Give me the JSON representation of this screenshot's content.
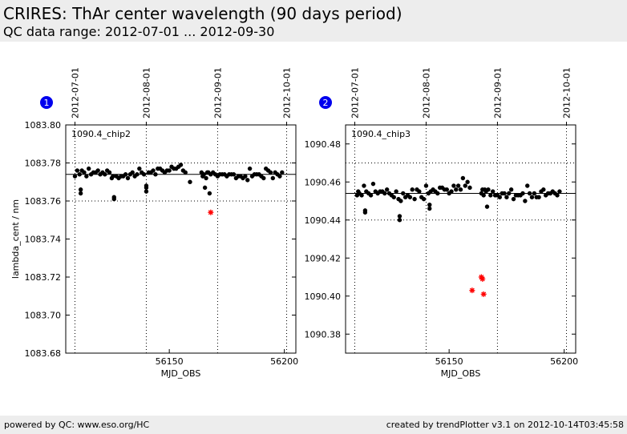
{
  "header": {
    "title": "CRIRES: ThAr center wavelength (90 days period)",
    "subtitle": "QC data range: 2012-07-01 ... 2012-09-30"
  },
  "footer": {
    "left": "powered by QC: www.eso.org/HC",
    "right": "created by trendPlotter v3.1 on 2012-10-14T03:45:58"
  },
  "colors": {
    "outlier": "#ff0000",
    "data": "#000000",
    "badge": "#0000ee"
  },
  "chart_data": [
    {
      "type": "scatter",
      "badge": "1",
      "label": "1090.4_chip2",
      "xlabel": "MJD_OBS",
      "ylabel": "lambda_cent / nm",
      "xlim": [
        56105,
        56205
      ],
      "ylim": [
        1083.68,
        1083.8
      ],
      "xticks": [
        56150,
        56200
      ],
      "yticks": [
        1083.68,
        1083.7,
        1083.72,
        1083.74,
        1083.76,
        1083.78,
        1083.8
      ],
      "date_ticks": [
        {
          "x": 56109,
          "label": "2012-07-01"
        },
        {
          "x": 56140,
          "label": "2012-08-01"
        },
        {
          "x": 56171,
          "label": "2012-09-01"
        },
        {
          "x": 56201,
          "label": "2012-10-01"
        }
      ],
      "reference_line": 1083.774,
      "dotted_lines": [
        1083.78,
        1083.76
      ],
      "grid": "vertical dotted at date ticks",
      "points": [
        [
          56109,
          1083.773
        ],
        [
          56110,
          1083.776
        ],
        [
          56111,
          1083.774
        ],
        [
          56111.5,
          1083.766
        ],
        [
          56111.5,
          1083.764
        ],
        [
          56112,
          1083.776
        ],
        [
          56113,
          1083.775
        ],
        [
          56114,
          1083.773
        ],
        [
          56115,
          1083.777
        ],
        [
          56116,
          1083.774
        ],
        [
          56117,
          1083.775
        ],
        [
          56118,
          1083.775
        ],
        [
          56119,
          1083.776
        ],
        [
          56120,
          1083.774
        ],
        [
          56121,
          1083.775
        ],
        [
          56122,
          1083.774
        ],
        [
          56123,
          1083.776
        ],
        [
          56124,
          1083.775
        ],
        [
          56125,
          1083.772
        ],
        [
          56125.5,
          1083.773
        ],
        [
          56126,
          1083.762
        ],
        [
          56126,
          1083.761
        ],
        [
          56127,
          1083.773
        ],
        [
          56128,
          1083.772
        ],
        [
          56129,
          1083.773
        ],
        [
          56130,
          1083.773
        ],
        [
          56131,
          1083.774
        ],
        [
          56132,
          1083.772
        ],
        [
          56133,
          1083.774
        ],
        [
          56134,
          1083.775
        ],
        [
          56135,
          1083.773
        ],
        [
          56136,
          1083.774
        ],
        [
          56137,
          1083.777
        ],
        [
          56138,
          1083.775
        ],
        [
          56139,
          1083.774
        ],
        [
          56140,
          1083.768
        ],
        [
          56140,
          1083.767
        ],
        [
          56140,
          1083.765
        ],
        [
          56141,
          1083.775
        ],
        [
          56142,
          1083.775
        ],
        [
          56143,
          1083.776
        ],
        [
          56144,
          1083.774
        ],
        [
          56145,
          1083.777
        ],
        [
          56146,
          1083.777
        ],
        [
          56147,
          1083.776
        ],
        [
          56148,
          1083.775
        ],
        [
          56149,
          1083.776
        ],
        [
          56150,
          1083.776
        ],
        [
          56151,
          1083.778
        ],
        [
          56152,
          1083.777
        ],
        [
          56153,
          1083.777
        ],
        [
          56154,
          1083.778
        ],
        [
          56155,
          1083.779
        ],
        [
          56156,
          1083.776
        ],
        [
          56157,
          1083.775
        ],
        [
          56159,
          1083.77
        ],
        [
          56164,
          1083.775
        ],
        [
          56164.5,
          1083.773
        ],
        [
          56165,
          1083.774
        ],
        [
          56165.5,
          1083.767
        ],
        [
          56166,
          1083.772
        ],
        [
          56166.5,
          1083.775
        ],
        [
          56167,
          1083.775
        ],
        [
          56167.5,
          1083.764
        ],
        [
          56168,
          1083.774
        ],
        [
          56169,
          1083.775
        ],
        [
          56170,
          1083.774
        ],
        [
          56171,
          1083.773
        ],
        [
          56172,
          1083.774
        ],
        [
          56173,
          1083.774
        ],
        [
          56174,
          1083.774
        ],
        [
          56175,
          1083.773
        ],
        [
          56176,
          1083.774
        ],
        [
          56177,
          1083.774
        ],
        [
          56178,
          1083.774
        ],
        [
          56179,
          1083.772
        ],
        [
          56180,
          1083.773
        ],
        [
          56181,
          1083.773
        ],
        [
          56182,
          1083.772
        ],
        [
          56183,
          1083.773
        ],
        [
          56184,
          1083.771
        ],
        [
          56185,
          1083.777
        ],
        [
          56186,
          1083.773
        ],
        [
          56187,
          1083.774
        ],
        [
          56188,
          1083.774
        ],
        [
          56189,
          1083.774
        ],
        [
          56190,
          1083.773
        ],
        [
          56191,
          1083.772
        ],
        [
          56192,
          1083.777
        ],
        [
          56193,
          1083.776
        ],
        [
          56194,
          1083.775
        ],
        [
          56195,
          1083.772
        ],
        [
          56196,
          1083.775
        ],
        [
          56197,
          1083.774
        ],
        [
          56198,
          1083.773
        ],
        [
          56199,
          1083.775
        ]
      ],
      "outliers": [
        [
          56168,
          1083.754
        ]
      ]
    },
    {
      "type": "scatter",
      "badge": "2",
      "label": "1090.4_chip3",
      "xlabel": "MJD_OBS",
      "ylabel": "",
      "xlim": [
        56105,
        56205
      ],
      "ylim": [
        1090.37,
        1090.49
      ],
      "xticks": [
        56150,
        56200
      ],
      "yticks": [
        1090.38,
        1090.4,
        1090.42,
        1090.44,
        1090.46,
        1090.48
      ],
      "date_ticks": [
        {
          "x": 56109,
          "label": "2012-07-01"
        },
        {
          "x": 56140,
          "label": "2012-08-01"
        },
        {
          "x": 56171,
          "label": "2012-09-01"
        },
        {
          "x": 56201,
          "label": "2012-10-01"
        }
      ],
      "reference_line": 1090.454,
      "dotted_lines": [
        1090.47,
        1090.44
      ],
      "grid": "vertical dotted at date ticks",
      "points": [
        [
          56110,
          1090.453
        ],
        [
          56110.5,
          1090.455
        ],
        [
          56111,
          1090.454
        ],
        [
          56112,
          1090.453
        ],
        [
          56113,
          1090.458
        ],
        [
          56113.5,
          1090.445
        ],
        [
          56113.5,
          1090.444
        ],
        [
          56114,
          1090.455
        ],
        [
          56115,
          1090.454
        ],
        [
          56116,
          1090.453
        ],
        [
          56117,
          1090.459
        ],
        [
          56118,
          1090.455
        ],
        [
          56119,
          1090.454
        ],
        [
          56120,
          1090.455
        ],
        [
          56121,
          1090.455
        ],
        [
          56122,
          1090.454
        ],
        [
          56123,
          1090.456
        ],
        [
          56124,
          1090.454
        ],
        [
          56125,
          1090.453
        ],
        [
          56126,
          1090.452
        ],
        [
          56127,
          1090.455
        ],
        [
          56128,
          1090.451
        ],
        [
          56128.5,
          1090.442
        ],
        [
          56128.5,
          1090.44
        ],
        [
          56129,
          1090.45
        ],
        [
          56130,
          1090.454
        ],
        [
          56131,
          1090.452
        ],
        [
          56132,
          1090.453
        ],
        [
          56133,
          1090.452
        ],
        [
          56134,
          1090.456
        ],
        [
          56135,
          1090.451
        ],
        [
          56136,
          1090.456
        ],
        [
          56137,
          1090.455
        ],
        [
          56138,
          1090.452
        ],
        [
          56139,
          1090.451
        ],
        [
          56140,
          1090.458
        ],
        [
          56141,
          1090.454
        ],
        [
          56141.5,
          1090.448
        ],
        [
          56141.5,
          1090.446
        ],
        [
          56142,
          1090.455
        ],
        [
          56143,
          1090.456
        ],
        [
          56144,
          1090.455
        ],
        [
          56145,
          1090.454
        ],
        [
          56146,
          1090.457
        ],
        [
          56147,
          1090.457
        ],
        [
          56148,
          1090.456
        ],
        [
          56149,
          1090.456
        ],
        [
          56150,
          1090.454
        ],
        [
          56151,
          1090.455
        ],
        [
          56152,
          1090.458
        ],
        [
          56153,
          1090.456
        ],
        [
          56154,
          1090.458
        ],
        [
          56155,
          1090.456
        ],
        [
          56156,
          1090.462
        ],
        [
          56157,
          1090.458
        ],
        [
          56158,
          1090.46
        ],
        [
          56159,
          1090.457
        ],
        [
          56164,
          1090.454
        ],
        [
          56164.5,
          1090.456
        ],
        [
          56165,
          1090.453
        ],
        [
          56165.5,
          1090.456
        ],
        [
          56166,
          1090.455
        ],
        [
          56166.5,
          1090.447
        ],
        [
          56167,
          1090.456
        ],
        [
          56168,
          1090.453
        ],
        [
          56169,
          1090.455
        ],
        [
          56170,
          1090.453
        ],
        [
          56171,
          1090.453
        ],
        [
          56172,
          1090.452
        ],
        [
          56173,
          1090.454
        ],
        [
          56174,
          1090.454
        ],
        [
          56175,
          1090.452
        ],
        [
          56176,
          1090.454
        ],
        [
          56177,
          1090.456
        ],
        [
          56178,
          1090.451
        ],
        [
          56179,
          1090.453
        ],
        [
          56180,
          1090.453
        ],
        [
          56181,
          1090.453
        ],
        [
          56182,
          1090.454
        ],
        [
          56183,
          1090.45
        ],
        [
          56184,
          1090.458
        ],
        [
          56185,
          1090.454
        ],
        [
          56186,
          1090.452
        ],
        [
          56187,
          1090.454
        ],
        [
          56188,
          1090.452
        ],
        [
          56189,
          1090.452
        ],
        [
          56190,
          1090.455
        ],
        [
          56191,
          1090.456
        ],
        [
          56192,
          1090.453
        ],
        [
          56193,
          1090.454
        ],
        [
          56194,
          1090.454
        ],
        [
          56195,
          1090.455
        ],
        [
          56196,
          1090.454
        ],
        [
          56197,
          1090.453
        ],
        [
          56198,
          1090.455
        ]
      ],
      "outliers": [
        [
          56160,
          1090.403
        ],
        [
          56164,
          1090.41
        ],
        [
          56164.5,
          1090.409
        ],
        [
          56165,
          1090.401
        ]
      ]
    }
  ]
}
